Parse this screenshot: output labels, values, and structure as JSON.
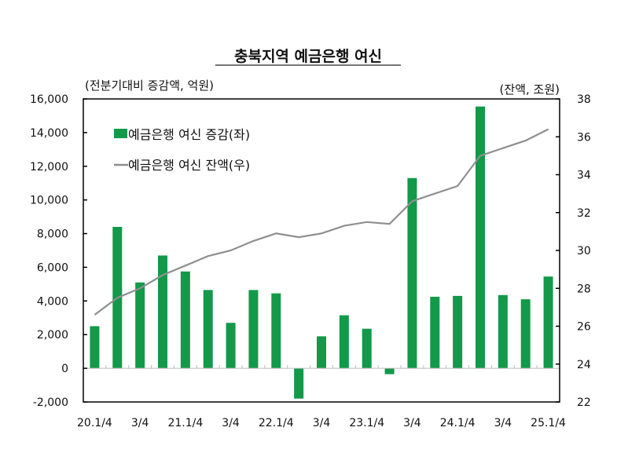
{
  "chart_data": {
    "type": "bar+line",
    "title": "충북지역 예금은행 여신",
    "left_axis_label": "(전분기대비 증감액, 억원)",
    "right_axis_label": "(잔액, 조원)",
    "categories": [
      "20.1/4",
      "20.2/4",
      "20.3/4",
      "20.4/4",
      "21.1/4",
      "21.2/4",
      "21.3/4",
      "21.4/4",
      "22.1/4",
      "22.2/4",
      "22.3/4",
      "22.4/4",
      "23.1/4",
      "23.2/4",
      "23.3/4",
      "23.4/4",
      "24.1/4",
      "24.2/4",
      "24.3/4",
      "24.4/4",
      "25.1/4"
    ],
    "x_tick_labels": [
      "20.1/4",
      "",
      "3/4",
      "",
      "21.1/4",
      "",
      "3/4",
      "",
      "22.1/4",
      "",
      "3/4",
      "",
      "23.1/4",
      "",
      "3/4",
      "",
      "24.1/4",
      "",
      "3/4",
      "",
      "25.1/4"
    ],
    "left_ylim": [
      -2000,
      16000
    ],
    "left_ticks": [
      "-2,000",
      "0",
      "2,000",
      "4,000",
      "6,000",
      "8,000",
      "10,000",
      "12,000",
      "14,000",
      "16,000"
    ],
    "right_ylim": [
      22,
      38
    ],
    "right_ticks": [
      "22",
      "24",
      "26",
      "28",
      "30",
      "32",
      "34",
      "36",
      "38"
    ],
    "legend_placement": "top-left",
    "grid": false,
    "series": [
      {
        "name": "예금은행 여신 증감(좌)",
        "type": "bar",
        "axis": "left",
        "color": "#12994a",
        "values": [
          2500,
          8400,
          5100,
          6700,
          5750,
          4650,
          2700,
          4650,
          4450,
          -1800,
          1900,
          3150,
          2350,
          -350,
          11300,
          4250,
          4300,
          15550,
          4350,
          4100,
          5450
        ]
      },
      {
        "name": "예금은행 여신 잔액(우)",
        "type": "line",
        "axis": "right",
        "color": "#8f8f8f",
        "values": [
          26.6,
          27.5,
          28.0,
          28.7,
          29.2,
          29.7,
          30.0,
          30.5,
          30.9,
          30.7,
          30.9,
          31.3,
          31.5,
          31.4,
          32.6,
          33.0,
          33.4,
          35.0,
          35.4,
          35.8,
          36.4
        ]
      }
    ]
  }
}
